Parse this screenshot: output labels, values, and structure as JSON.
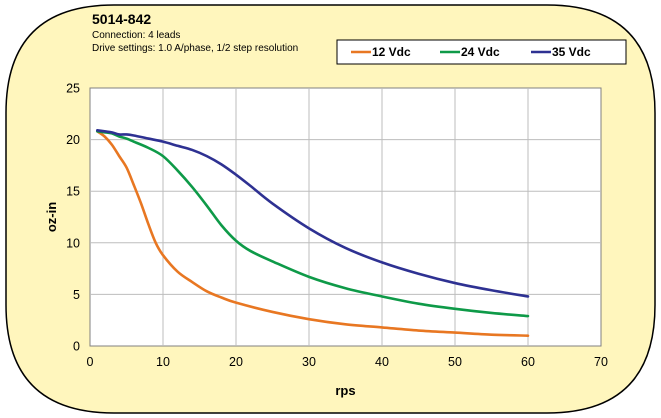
{
  "colors": {
    "card_background": "#FFF6BD",
    "plot_background": "#FFFFFF",
    "grid": "#BDBDBD",
    "series_12": "#E87722",
    "series_24": "#0E9A48",
    "series_35": "#2E3192"
  },
  "header": {
    "title": "5014-842",
    "line1": "Connection: 4 leads",
    "line2": "Drive settings: 1.0 A/phase, 1/2 step resolution"
  },
  "chart_data": {
    "type": "line",
    "xlabel": "rps",
    "ylabel": "oz-in",
    "xlim": [
      0,
      70
    ],
    "ylim": [
      0,
      25
    ],
    "x_ticks": [
      "0",
      "10",
      "20",
      "30",
      "40",
      "50",
      "60",
      "70"
    ],
    "y_ticks": [
      "0",
      "5",
      "10",
      "15",
      "20",
      "25"
    ],
    "grid": true,
    "legend_position": "top-right",
    "series": [
      {
        "name": "12 Vdc",
        "color": "#E87722",
        "x": [
          1,
          2,
          3,
          4,
          5,
          6,
          7,
          8,
          9,
          10,
          12,
          14,
          16,
          18,
          20,
          25,
          30,
          35,
          40,
          45,
          50,
          55,
          60
        ],
        "y": [
          20.8,
          20.3,
          19.5,
          18.4,
          17.3,
          15.6,
          13.8,
          11.8,
          10.0,
          8.8,
          7.2,
          6.2,
          5.3,
          4.7,
          4.2,
          3.3,
          2.6,
          2.1,
          1.8,
          1.5,
          1.3,
          1.1,
          1.0
        ]
      },
      {
        "name": "24 Vdc",
        "color": "#0E9A48",
        "x": [
          1,
          2,
          3,
          4,
          5,
          6,
          8,
          10,
          12,
          14,
          16,
          18,
          20,
          22,
          25,
          30,
          35,
          40,
          45,
          50,
          55,
          60
        ],
        "y": [
          20.8,
          20.7,
          20.6,
          20.3,
          20.1,
          19.8,
          19.2,
          18.4,
          17.0,
          15.4,
          13.6,
          11.7,
          10.2,
          9.2,
          8.2,
          6.7,
          5.6,
          4.8,
          4.1,
          3.6,
          3.2,
          2.9
        ]
      },
      {
        "name": "35 Vdc",
        "color": "#2E3192",
        "x": [
          1,
          2,
          3,
          4,
          5,
          6,
          8,
          10,
          12,
          14,
          16,
          18,
          20,
          22,
          25,
          30,
          35,
          40,
          45,
          50,
          55,
          60
        ],
        "y": [
          20.9,
          20.8,
          20.7,
          20.5,
          20.5,
          20.4,
          20.1,
          19.8,
          19.4,
          19.0,
          18.4,
          17.6,
          16.6,
          15.5,
          13.8,
          11.4,
          9.5,
          8.1,
          7.0,
          6.1,
          5.4,
          4.8
        ]
      }
    ]
  }
}
